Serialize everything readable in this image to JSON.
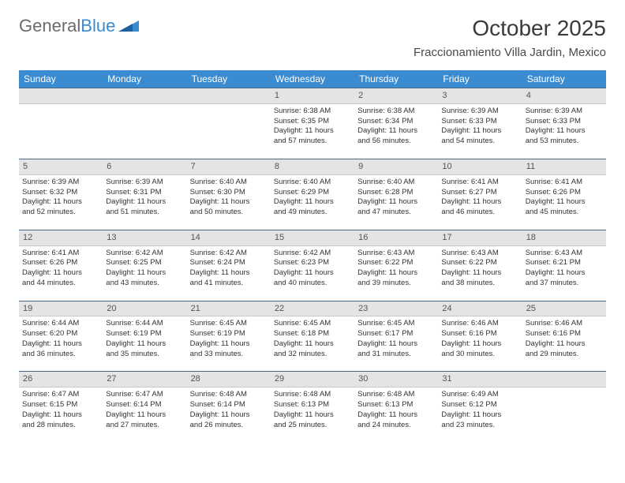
{
  "brand": {
    "part1": "General",
    "part2": "Blue"
  },
  "title": "October 2025",
  "location": "Fraccionamiento Villa Jardin, Mexico",
  "colors": {
    "header_bg": "#3b8bd0",
    "header_text": "#ffffff",
    "daynum_bg": "#e4e4e4",
    "daynum_border_top": "#4a6a8a",
    "brand_gray": "#6b6b6b",
    "brand_blue": "#3b8bd0"
  },
  "fonts": {
    "title_pt": 28,
    "location_pt": 15,
    "th_pt": 12,
    "cell_pt": 9.5
  },
  "weekdays": [
    "Sunday",
    "Monday",
    "Tuesday",
    "Wednesday",
    "Thursday",
    "Friday",
    "Saturday"
  ],
  "weeks": [
    [
      {
        "blank": true
      },
      {
        "blank": true
      },
      {
        "blank": true
      },
      {
        "day": "1",
        "sunrise": "Sunrise: 6:38 AM",
        "sunset": "Sunset: 6:35 PM",
        "d1": "Daylight: 11 hours",
        "d2": "and 57 minutes."
      },
      {
        "day": "2",
        "sunrise": "Sunrise: 6:38 AM",
        "sunset": "Sunset: 6:34 PM",
        "d1": "Daylight: 11 hours",
        "d2": "and 56 minutes."
      },
      {
        "day": "3",
        "sunrise": "Sunrise: 6:39 AM",
        "sunset": "Sunset: 6:33 PM",
        "d1": "Daylight: 11 hours",
        "d2": "and 54 minutes."
      },
      {
        "day": "4",
        "sunrise": "Sunrise: 6:39 AM",
        "sunset": "Sunset: 6:33 PM",
        "d1": "Daylight: 11 hours",
        "d2": "and 53 minutes."
      }
    ],
    [
      {
        "day": "5",
        "sunrise": "Sunrise: 6:39 AM",
        "sunset": "Sunset: 6:32 PM",
        "d1": "Daylight: 11 hours",
        "d2": "and 52 minutes."
      },
      {
        "day": "6",
        "sunrise": "Sunrise: 6:39 AM",
        "sunset": "Sunset: 6:31 PM",
        "d1": "Daylight: 11 hours",
        "d2": "and 51 minutes."
      },
      {
        "day": "7",
        "sunrise": "Sunrise: 6:40 AM",
        "sunset": "Sunset: 6:30 PM",
        "d1": "Daylight: 11 hours",
        "d2": "and 50 minutes."
      },
      {
        "day": "8",
        "sunrise": "Sunrise: 6:40 AM",
        "sunset": "Sunset: 6:29 PM",
        "d1": "Daylight: 11 hours",
        "d2": "and 49 minutes."
      },
      {
        "day": "9",
        "sunrise": "Sunrise: 6:40 AM",
        "sunset": "Sunset: 6:28 PM",
        "d1": "Daylight: 11 hours",
        "d2": "and 47 minutes."
      },
      {
        "day": "10",
        "sunrise": "Sunrise: 6:41 AM",
        "sunset": "Sunset: 6:27 PM",
        "d1": "Daylight: 11 hours",
        "d2": "and 46 minutes."
      },
      {
        "day": "11",
        "sunrise": "Sunrise: 6:41 AM",
        "sunset": "Sunset: 6:26 PM",
        "d1": "Daylight: 11 hours",
        "d2": "and 45 minutes."
      }
    ],
    [
      {
        "day": "12",
        "sunrise": "Sunrise: 6:41 AM",
        "sunset": "Sunset: 6:26 PM",
        "d1": "Daylight: 11 hours",
        "d2": "and 44 minutes."
      },
      {
        "day": "13",
        "sunrise": "Sunrise: 6:42 AM",
        "sunset": "Sunset: 6:25 PM",
        "d1": "Daylight: 11 hours",
        "d2": "and 43 minutes."
      },
      {
        "day": "14",
        "sunrise": "Sunrise: 6:42 AM",
        "sunset": "Sunset: 6:24 PM",
        "d1": "Daylight: 11 hours",
        "d2": "and 41 minutes."
      },
      {
        "day": "15",
        "sunrise": "Sunrise: 6:42 AM",
        "sunset": "Sunset: 6:23 PM",
        "d1": "Daylight: 11 hours",
        "d2": "and 40 minutes."
      },
      {
        "day": "16",
        "sunrise": "Sunrise: 6:43 AM",
        "sunset": "Sunset: 6:22 PM",
        "d1": "Daylight: 11 hours",
        "d2": "and 39 minutes."
      },
      {
        "day": "17",
        "sunrise": "Sunrise: 6:43 AM",
        "sunset": "Sunset: 6:22 PM",
        "d1": "Daylight: 11 hours",
        "d2": "and 38 minutes."
      },
      {
        "day": "18",
        "sunrise": "Sunrise: 6:43 AM",
        "sunset": "Sunset: 6:21 PM",
        "d1": "Daylight: 11 hours",
        "d2": "and 37 minutes."
      }
    ],
    [
      {
        "day": "19",
        "sunrise": "Sunrise: 6:44 AM",
        "sunset": "Sunset: 6:20 PM",
        "d1": "Daylight: 11 hours",
        "d2": "and 36 minutes."
      },
      {
        "day": "20",
        "sunrise": "Sunrise: 6:44 AM",
        "sunset": "Sunset: 6:19 PM",
        "d1": "Daylight: 11 hours",
        "d2": "and 35 minutes."
      },
      {
        "day": "21",
        "sunrise": "Sunrise: 6:45 AM",
        "sunset": "Sunset: 6:19 PM",
        "d1": "Daylight: 11 hours",
        "d2": "and 33 minutes."
      },
      {
        "day": "22",
        "sunrise": "Sunrise: 6:45 AM",
        "sunset": "Sunset: 6:18 PM",
        "d1": "Daylight: 11 hours",
        "d2": "and 32 minutes."
      },
      {
        "day": "23",
        "sunrise": "Sunrise: 6:45 AM",
        "sunset": "Sunset: 6:17 PM",
        "d1": "Daylight: 11 hours",
        "d2": "and 31 minutes."
      },
      {
        "day": "24",
        "sunrise": "Sunrise: 6:46 AM",
        "sunset": "Sunset: 6:16 PM",
        "d1": "Daylight: 11 hours",
        "d2": "and 30 minutes."
      },
      {
        "day": "25",
        "sunrise": "Sunrise: 6:46 AM",
        "sunset": "Sunset: 6:16 PM",
        "d1": "Daylight: 11 hours",
        "d2": "and 29 minutes."
      }
    ],
    [
      {
        "day": "26",
        "sunrise": "Sunrise: 6:47 AM",
        "sunset": "Sunset: 6:15 PM",
        "d1": "Daylight: 11 hours",
        "d2": "and 28 minutes."
      },
      {
        "day": "27",
        "sunrise": "Sunrise: 6:47 AM",
        "sunset": "Sunset: 6:14 PM",
        "d1": "Daylight: 11 hours",
        "d2": "and 27 minutes."
      },
      {
        "day": "28",
        "sunrise": "Sunrise: 6:48 AM",
        "sunset": "Sunset: 6:14 PM",
        "d1": "Daylight: 11 hours",
        "d2": "and 26 minutes."
      },
      {
        "day": "29",
        "sunrise": "Sunrise: 6:48 AM",
        "sunset": "Sunset: 6:13 PM",
        "d1": "Daylight: 11 hours",
        "d2": "and 25 minutes."
      },
      {
        "day": "30",
        "sunrise": "Sunrise: 6:48 AM",
        "sunset": "Sunset: 6:13 PM",
        "d1": "Daylight: 11 hours",
        "d2": "and 24 minutes."
      },
      {
        "day": "31",
        "sunrise": "Sunrise: 6:49 AM",
        "sunset": "Sunset: 6:12 PM",
        "d1": "Daylight: 11 hours",
        "d2": "and 23 minutes."
      },
      {
        "blank": true
      }
    ]
  ]
}
